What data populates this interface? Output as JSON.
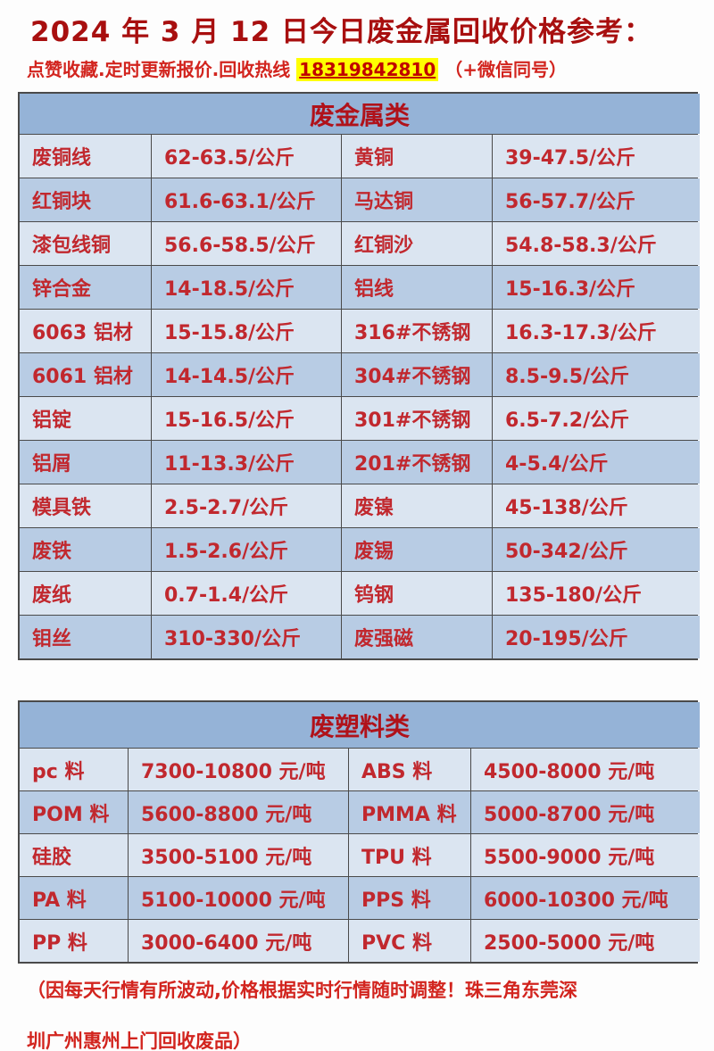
{
  "page": {
    "title": "2024 年 3 月 12 日今日废金属回收价格参考：",
    "subtitle_prefix": "点赞收藏.定时更新报价.回收热线 ",
    "phone": "18319842810",
    "subtitle_suffix": "（+微信同号）",
    "footer_line1": "（因每天行情有所波动,价格根据实时行情随时调整！珠三角东莞深",
    "footer_line2": "圳广州惠州上门回收废品）"
  },
  "colors": {
    "title-red": "#a80f0f",
    "subtitle-red": "#d2241e",
    "cell-red": "#c1282e",
    "header-red": "#b0121a",
    "header-bg": "#95b3d7",
    "row-light": "#dbe5f1",
    "row-dark": "#b8cce4",
    "border-color": "#4a4a4a",
    "highlight-yellow": "#ffff00"
  },
  "tables": [
    {
      "title": "废金属类",
      "rows": [
        [
          "废铜线",
          "62-63.5/公斤",
          "黄铜",
          "39-47.5/公斤"
        ],
        [
          "红铜块",
          "61.6-63.1/公斤",
          "马达铜",
          "56-57.7/公斤"
        ],
        [
          "漆包线铜",
          "56.6-58.5/公斤",
          "红铜沙",
          "54.8-58.3/公斤"
        ],
        [
          "锌合金",
          "14-18.5/公斤",
          "铝线",
          "15-16.3/公斤"
        ],
        [
          "6063 铝材",
          "15-15.8/公斤",
          "316#不锈钢",
          "16.3-17.3/公斤"
        ],
        [
          "6061 铝材",
          "14-14.5/公斤",
          "304#不锈钢",
          "8.5-9.5/公斤"
        ],
        [
          "铝锭",
          "15-16.5/公斤",
          "301#不锈钢",
          "6.5-7.2/公斤"
        ],
        [
          "铝屑",
          "11-13.3/公斤",
          "201#不锈钢",
          "4-5.4/公斤"
        ],
        [
          "模具铁",
          "2.5-2.7/公斤",
          "废镍",
          "45-138/公斤"
        ],
        [
          "废铁",
          "1.5-2.6/公斤",
          "废锡",
          "50-342/公斤"
        ],
        [
          "废纸",
          "0.7-1.4/公斤",
          "钨钢",
          "135-180/公斤"
        ],
        [
          "钼丝",
          "310-330/公斤",
          "废强磁",
          "20-195/公斤"
        ]
      ]
    },
    {
      "title": "废塑料类",
      "rows": [
        [
          "pc 料",
          "7300-10800 元/吨",
          "ABS 料",
          "4500-8000 元/吨"
        ],
        [
          "POM 料",
          "5600-8800 元/吨",
          "PMMA 料",
          "5000-8700 元/吨"
        ],
        [
          "硅胶",
          "3500-5100 元/吨",
          "TPU 料",
          "5500-9000 元/吨"
        ],
        [
          "PA 料",
          "5100-10000 元/吨",
          "PPS 料",
          "6000-10300 元/吨"
        ],
        [
          "PP 料",
          "3000-6400 元/吨",
          "PVC 料",
          "2500-5000 元/吨"
        ]
      ]
    }
  ]
}
